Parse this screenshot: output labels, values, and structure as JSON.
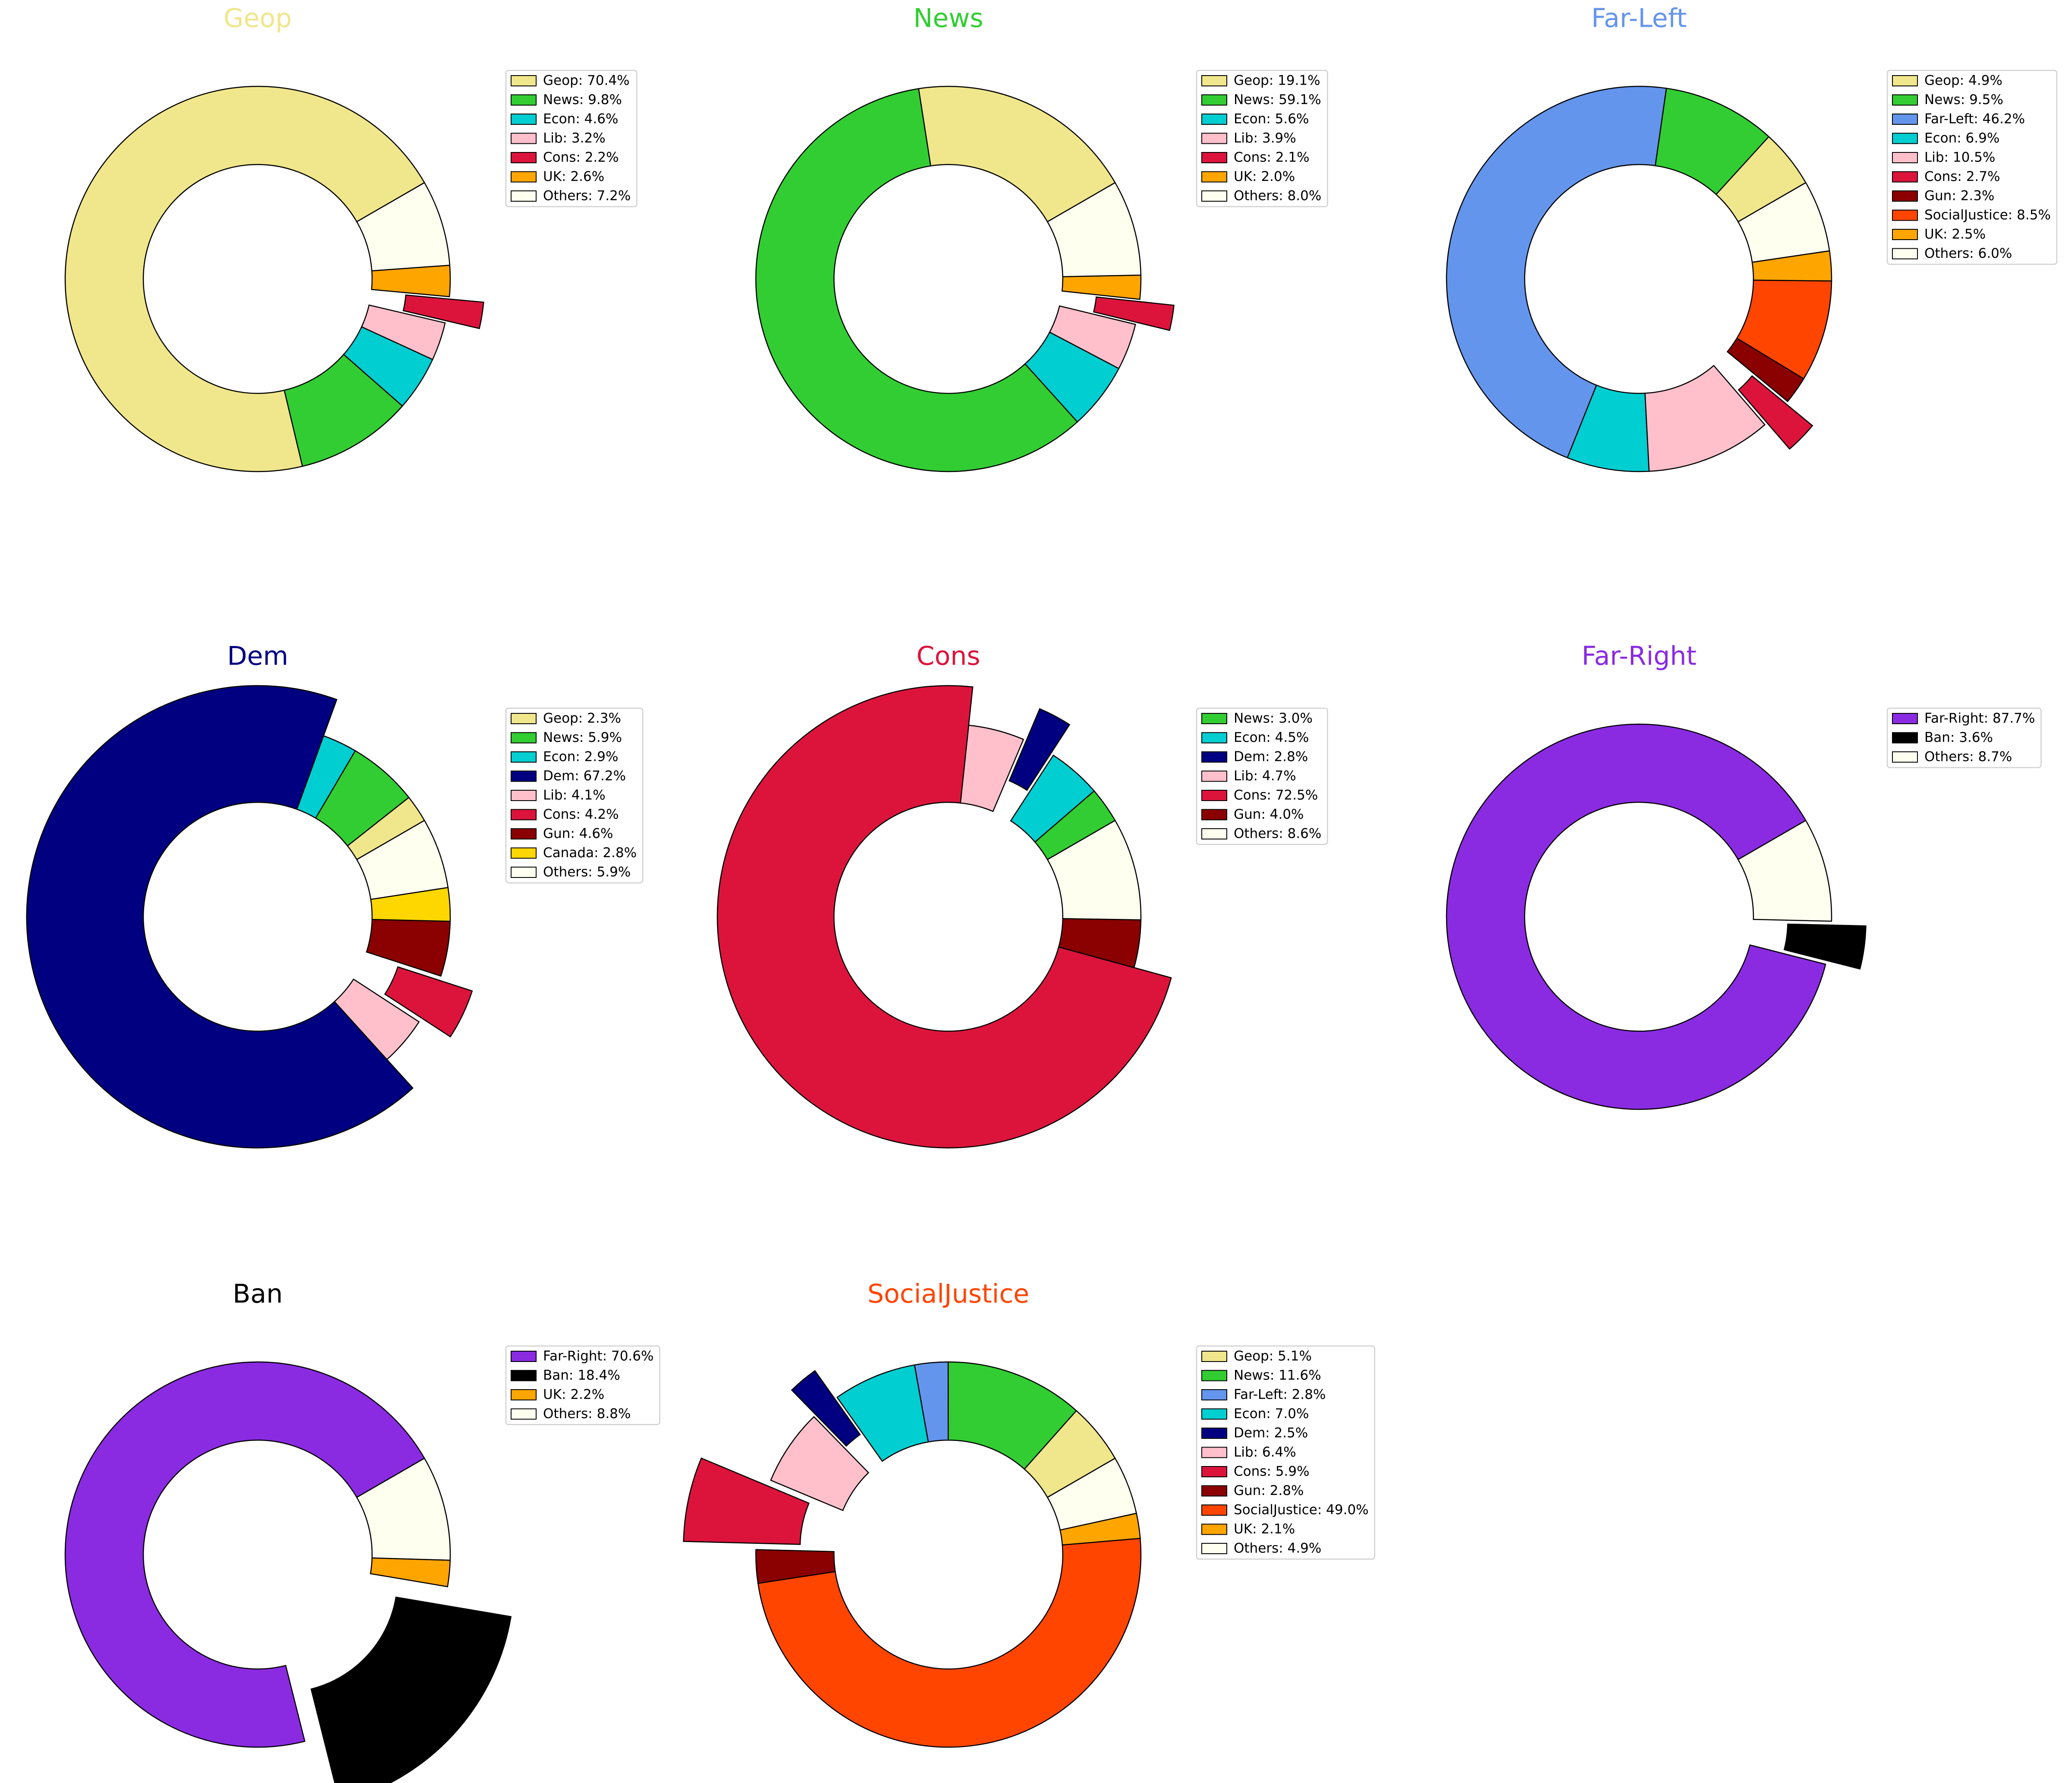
{
  "chart_data": [
    {
      "type": "pie",
      "title": "Geop",
      "title_color": "#f0e68c",
      "categories": [
        "Geop",
        "News",
        "Econ",
        "Lib",
        "Cons",
        "UK",
        "Others"
      ],
      "values": [
        70.4,
        9.8,
        4.6,
        3.2,
        2.2,
        2.6,
        7.2
      ],
      "value_labels": [
        "Geop: 70.4%",
        "News: 9.8%",
        "Econ: 4.6%",
        "Lib: 3.2%",
        "Cons: 2.2%",
        "UK: 2.6%",
        "Others: 7.2%"
      ],
      "colors": [
        "#f0e68c",
        "#32cd32",
        "#00ced1",
        "#ffc0cb",
        "#dc143c",
        "#ffa500",
        "#fffff0"
      ],
      "emphasis": [
        "none",
        "none",
        "none",
        "none",
        "exploded",
        "none",
        "none"
      ]
    },
    {
      "type": "pie",
      "title": "News",
      "title_color": "#32cd32",
      "categories": [
        "Geop",
        "News",
        "Econ",
        "Lib",
        "Cons",
        "UK",
        "Others"
      ],
      "values": [
        19.1,
        59.1,
        5.6,
        3.9,
        2.1,
        2.0,
        8.0
      ],
      "value_labels": [
        "Geop: 19.1%",
        "News: 59.1%",
        "Econ: 5.6%",
        "Lib: 3.9%",
        "Cons: 2.1%",
        "UK: 2.0%",
        "Others: 8.0%"
      ],
      "colors": [
        "#f0e68c",
        "#32cd32",
        "#00ced1",
        "#ffc0cb",
        "#dc143c",
        "#ffa500",
        "#fffff0"
      ],
      "emphasis": [
        "none",
        "none",
        "none",
        "none",
        "exploded",
        "none",
        "none"
      ]
    },
    {
      "type": "pie",
      "title": "Far-Left",
      "title_color": "#6495ed",
      "categories": [
        "Geop",
        "News",
        "Far-Left",
        "Econ",
        "Lib",
        "Cons",
        "Gun",
        "SocialJustice",
        "UK",
        "Others"
      ],
      "values": [
        4.9,
        9.5,
        46.2,
        6.9,
        10.5,
        2.7,
        2.3,
        8.5,
        2.5,
        6.0
      ],
      "value_labels": [
        "Geop: 4.9%",
        "News: 9.5%",
        "Far-Left: 46.2%",
        "Econ: 6.9%",
        "Lib: 10.5%",
        "Cons: 2.7%",
        "Gun: 2.3%",
        "SocialJustice: 8.5%",
        "UK: 2.5%",
        "Others: 6.0%"
      ],
      "colors": [
        "#f0e68c",
        "#32cd32",
        "#6495ed",
        "#00ced1",
        "#ffc0cb",
        "#dc143c",
        "#8b0000",
        "#ff4500",
        "#ffa500",
        "#fffff0"
      ],
      "emphasis": [
        "none",
        "none",
        "none",
        "none",
        "none",
        "exploded",
        "none",
        "none",
        "none",
        "none"
      ]
    },
    {
      "type": "pie",
      "title": "Dem",
      "title_color": "#000080",
      "categories": [
        "Geop",
        "News",
        "Econ",
        "Dem",
        "Lib",
        "Cons",
        "Gun",
        "Canada",
        "Others"
      ],
      "values": [
        2.3,
        5.9,
        2.9,
        67.2,
        4.1,
        4.2,
        4.6,
        2.8,
        5.9
      ],
      "value_labels": [
        "Geop: 2.3%",
        "News: 5.9%",
        "Econ: 2.9%",
        "Dem: 67.2%",
        "Lib: 4.1%",
        "Cons: 4.2%",
        "Gun: 4.6%",
        "Canada: 2.8%",
        "Others: 5.9%"
      ],
      "colors": [
        "#f0e68c",
        "#32cd32",
        "#00ced1",
        "#000080",
        "#ffc0cb",
        "#dc143c",
        "#8b0000",
        "#ffd700",
        "#fffff0"
      ],
      "emphasis": [
        "none",
        "none",
        "none",
        "enlarged",
        "none",
        "exploded",
        "none",
        "none",
        "none"
      ]
    },
    {
      "type": "pie",
      "title": "Cons",
      "title_color": "#dc143c",
      "categories": [
        "News",
        "Econ",
        "Dem",
        "Lib",
        "Cons",
        "Gun",
        "Others"
      ],
      "values": [
        3.0,
        4.5,
        2.8,
        4.7,
        72.5,
        4.0,
        8.6
      ],
      "value_labels": [
        "News: 3.0%",
        "Econ: 4.5%",
        "Dem: 2.8%",
        "Lib: 4.7%",
        "Cons: 72.5%",
        "Gun: 4.0%",
        "Others: 8.6%"
      ],
      "colors": [
        "#32cd32",
        "#00ced1",
        "#000080",
        "#ffc0cb",
        "#dc143c",
        "#8b0000",
        "#fffff0"
      ],
      "emphasis": [
        "none",
        "none",
        "exploded",
        "none",
        "enlarged",
        "none",
        "none"
      ]
    },
    {
      "type": "pie",
      "title": "Far-Right",
      "title_color": "#8a2be2",
      "categories": [
        "Far-Right",
        "Ban",
        "Others"
      ],
      "values": [
        87.7,
        3.6,
        8.7
      ],
      "value_labels": [
        "Far-Right: 87.7%",
        "Ban: 3.6%",
        "Others: 8.7%"
      ],
      "colors": [
        "#8a2be2",
        "#000000",
        "#fffff0"
      ],
      "emphasis": [
        "none",
        "exploded",
        "none"
      ]
    },
    {
      "type": "pie",
      "title": "Ban",
      "title_color": "#000000",
      "categories": [
        "Far-Right",
        "Ban",
        "UK",
        "Others"
      ],
      "values": [
        70.6,
        18.4,
        2.2,
        8.8
      ],
      "value_labels": [
        "Far-Right: 70.6%",
        "Ban: 18.4%",
        "UK: 2.2%",
        "Others: 8.8%"
      ],
      "colors": [
        "#8a2be2",
        "#000000",
        "#ffa500",
        "#fffff0"
      ],
      "emphasis": [
        "none",
        "both",
        "none",
        "none"
      ]
    },
    {
      "type": "pie",
      "title": "SocialJustice",
      "title_color": "#ff4500",
      "categories": [
        "Geop",
        "News",
        "Far-Left",
        "Econ",
        "Dem",
        "Lib",
        "Cons",
        "Gun",
        "SocialJustice",
        "UK",
        "Others"
      ],
      "values": [
        5.1,
        11.6,
        2.8,
        7.0,
        2.5,
        6.4,
        5.9,
        2.8,
        49.0,
        2.1,
        4.9
      ],
      "value_labels": [
        "Geop: 5.1%",
        "News: 11.6%",
        "Far-Left: 2.8%",
        "Econ: 7.0%",
        "Dem: 2.5%",
        "Lib: 6.4%",
        "Cons: 5.9%",
        "Gun: 2.8%",
        "SocialJustice: 49.0%",
        "UK: 2.1%",
        "Others: 4.9%"
      ],
      "colors": [
        "#f0e68c",
        "#32cd32",
        "#6495ed",
        "#00ced1",
        "#000080",
        "#ffc0cb",
        "#dc143c",
        "#8b0000",
        "#ff4500",
        "#ffa500",
        "#fffff0"
      ],
      "emphasis": [
        "none",
        "none",
        "none",
        "none",
        "exploded",
        "none",
        "both",
        "none",
        "none",
        "none",
        "none"
      ]
    }
  ]
}
